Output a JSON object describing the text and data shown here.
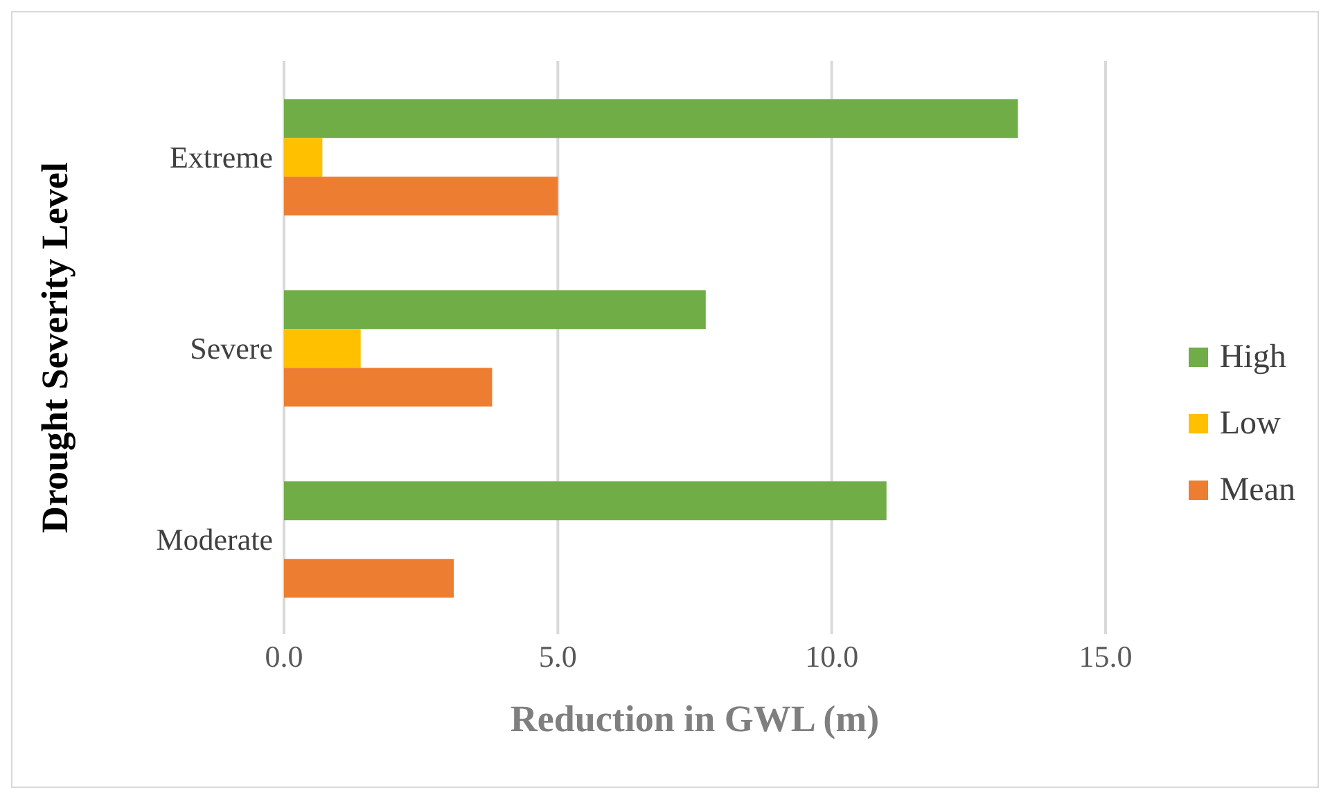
{
  "chart_data": {
    "type": "bar",
    "orientation": "horizontal",
    "xlabel": "Reduction in GWL (m)",
    "ylabel": "Drought Severity Level",
    "categories": [
      "Extreme",
      "Severe",
      "Moderate"
    ],
    "series": [
      {
        "name": "High",
        "color": "#70ad47",
        "values": [
          13.4,
          7.7,
          11.0
        ]
      },
      {
        "name": "Low",
        "color": "#ffc000",
        "values": [
          0.7,
          1.4,
          null
        ]
      },
      {
        "name": "Mean",
        "color": "#ed7d31",
        "values": [
          5.0,
          3.8,
          3.1
        ]
      }
    ],
    "xlim": [
      0,
      15
    ],
    "xticks": [
      {
        "value": 0,
        "label": "0.0"
      },
      {
        "value": 5,
        "label": "5.0"
      },
      {
        "value": 10,
        "label": "10.0"
      },
      {
        "value": 15,
        "label": "15.0"
      }
    ],
    "grid": "x",
    "legend": "right"
  }
}
